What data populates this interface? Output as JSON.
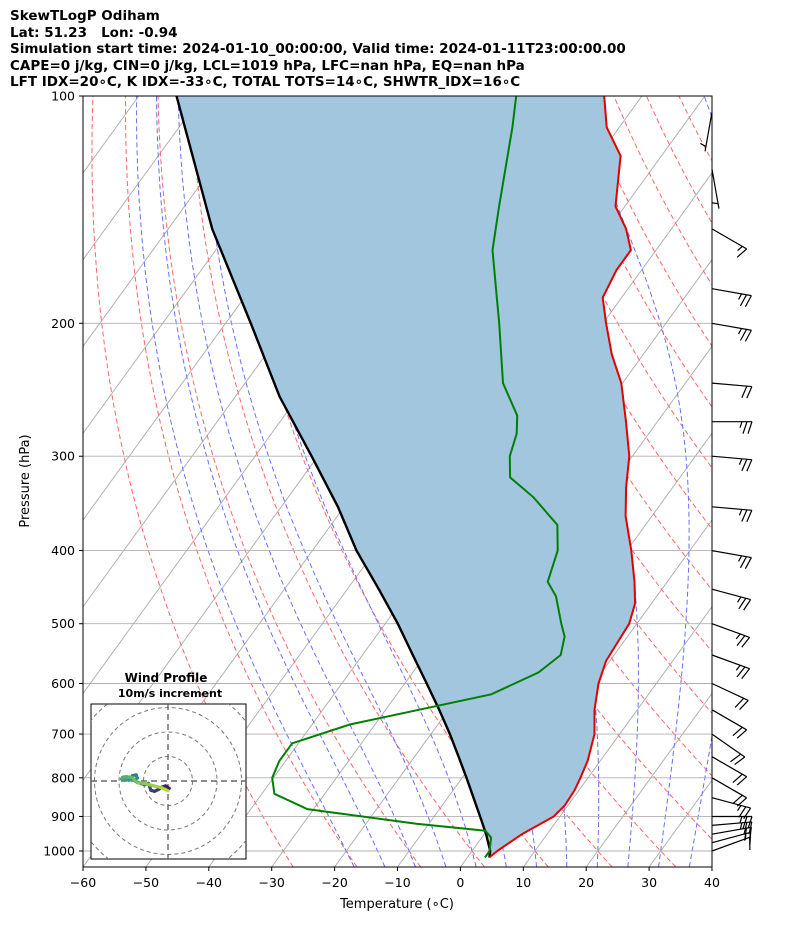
{
  "header": {
    "line1": "SkewTLogP Odiham",
    "line2": "Lat: 51.23   Lon: -0.94",
    "line3": "Simulation start time: 2024-01-10_00:00:00, Valid time: 2024-01-11T23:00:00.00",
    "line4": "CAPE=0 j/kg, CIN=0 j/kg, LCL=1019 hPa, LFC=nan hPa, EQ=nan hPa",
    "line5": "LFT IDX=20∘C, K IDX=-33∘C, TOTAL TOTS=14∘C, SHWTR_IDX=16∘C"
  },
  "colors": {
    "temperature": "#e00000",
    "dewpoint": "#008000",
    "parcel": "#000000",
    "cape_fill": "#a3c6df",
    "dry_adiabat": "#ff6666",
    "moist_adiabat": "#6670ff",
    "isotherm": "#aaaaaa",
    "hodograph_track": [
      "#3b1a6b",
      "#2a9a8c",
      "#b4dc3c"
    ]
  },
  "chart_data": {
    "type": "skewt_logp",
    "xlabel": "Temperature (∘C)",
    "ylabel": "Pressure (hPa)",
    "xlim": [
      -60,
      40
    ],
    "ylim": [
      1050,
      100
    ],
    "x_ticks": [
      "−60",
      "−50",
      "−40",
      "−30",
      "−20",
      "−10",
      "0",
      "10",
      "20",
      "30",
      "40"
    ],
    "y_ticks": [
      {
        "p": 100,
        "label": "100"
      },
      {
        "p": 200,
        "label": "200"
      },
      {
        "p": 300,
        "label": "300"
      },
      {
        "p": 400,
        "label": "400"
      },
      {
        "p": 500,
        "label": "500"
      },
      {
        "p": 600,
        "label": "600"
      },
      {
        "p": 700,
        "label": "700"
      },
      {
        "p": 800,
        "label": "800"
      },
      {
        "p": 900,
        "label": "900"
      },
      {
        "p": 1000,
        "label": "1000"
      }
    ],
    "temperature": [
      [
        1020,
        3.5
      ],
      [
        1000,
        4
      ],
      [
        950,
        6
      ],
      [
        900,
        9
      ],
      [
        870,
        9.5
      ],
      [
        830,
        9.3
      ],
      [
        800,
        8.8
      ],
      [
        760,
        8
      ],
      [
        700,
        6
      ],
      [
        650,
        3.2
      ],
      [
        600,
        0.8
      ],
      [
        560,
        -0.6
      ],
      [
        500,
        -1.2
      ],
      [
        470,
        -2.6
      ],
      [
        440,
        -5.2
      ],
      [
        400,
        -9.3
      ],
      [
        360,
        -14.2
      ],
      [
        330,
        -17.4
      ],
      [
        300,
        -20.5
      ],
      [
        270,
        -25
      ],
      [
        240,
        -30.2
      ],
      [
        220,
        -35
      ],
      [
        200,
        -39.5
      ],
      [
        185,
        -43
      ],
      [
        170,
        -44
      ],
      [
        160,
        -44
      ],
      [
        150,
        -47.2
      ],
      [
        140,
        -51.5
      ],
      [
        120,
        -56.5
      ],
      [
        110,
        -62
      ],
      [
        100,
        -66
      ]
    ],
    "dewpoint": [
      [
        1020,
        2.8
      ],
      [
        1000,
        2.8
      ],
      [
        960,
        1.5
      ],
      [
        940,
        -0.2
      ],
      [
        920,
        -12
      ],
      [
        880,
        -31
      ],
      [
        840,
        -38
      ],
      [
        800,
        -40.2
      ],
      [
        760,
        -41
      ],
      [
        720,
        -41
      ],
      [
        680,
        -34
      ],
      [
        620,
        -15
      ],
      [
        580,
        -10
      ],
      [
        550,
        -8.5
      ],
      [
        520,
        -10
      ],
      [
        500,
        -12
      ],
      [
        460,
        -16
      ],
      [
        440,
        -19
      ],
      [
        400,
        -21
      ],
      [
        370,
        -24
      ],
      [
        340,
        -31
      ],
      [
        320,
        -37
      ],
      [
        300,
        -39.5
      ],
      [
        280,
        -41
      ],
      [
        265,
        -43
      ],
      [
        240,
        -49
      ],
      [
        200,
        -56.5
      ],
      [
        180,
        -61
      ],
      [
        160,
        -66
      ],
      [
        140,
        -70
      ],
      [
        110,
        -77
      ],
      [
        100,
        -80
      ]
    ],
    "parcel": [
      [
        1020,
        3.5
      ],
      [
        1000,
        2.9
      ],
      [
        950,
        0.3
      ],
      [
        900,
        -2.7
      ],
      [
        850,
        -5.9
      ],
      [
        800,
        -9.3
      ],
      [
        750,
        -13
      ],
      [
        700,
        -17
      ],
      [
        650,
        -21.5
      ],
      [
        600,
        -26.5
      ],
      [
        550,
        -32
      ],
      [
        500,
        -38
      ],
      [
        450,
        -45
      ],
      [
        400,
        -53
      ],
      [
        350,
        -61
      ],
      [
        300,
        -71
      ],
      [
        250,
        -83
      ],
      [
        200,
        -96
      ],
      [
        150,
        -113
      ],
      [
        100,
        -134
      ]
    ],
    "wind_barbs": [
      {
        "p": 1000,
        "speed": 10,
        "dir": 250
      },
      {
        "p": 975,
        "speed": 15,
        "dir": 255
      },
      {
        "p": 950,
        "speed": 20,
        "dir": 260
      },
      {
        "p": 925,
        "speed": 25,
        "dir": 265
      },
      {
        "p": 900,
        "speed": 25,
        "dir": 270
      },
      {
        "p": 850,
        "speed": 25,
        "dir": 285
      },
      {
        "p": 800,
        "speed": 20,
        "dir": 300
      },
      {
        "p": 750,
        "speed": 20,
        "dir": 300
      },
      {
        "p": 700,
        "speed": 20,
        "dir": 305
      },
      {
        "p": 650,
        "speed": 20,
        "dir": 300
      },
      {
        "p": 600,
        "speed": 20,
        "dir": 295
      },
      {
        "p": 550,
        "speed": 25,
        "dir": 290
      },
      {
        "p": 500,
        "speed": 25,
        "dir": 290
      },
      {
        "p": 450,
        "speed": 25,
        "dir": 285
      },
      {
        "p": 400,
        "speed": 25,
        "dir": 280
      },
      {
        "p": 350,
        "speed": 25,
        "dir": 275
      },
      {
        "p": 300,
        "speed": 25,
        "dir": 275
      },
      {
        "p": 270,
        "speed": 25,
        "dir": 270
      },
      {
        "p": 240,
        "speed": 20,
        "dir": 275
      },
      {
        "p": 200,
        "speed": 25,
        "dir": 280
      },
      {
        "p": 180,
        "speed": 25,
        "dir": 280
      },
      {
        "p": 150,
        "speed": 15,
        "dir": 300
      },
      {
        "p": 125,
        "speed": 5,
        "dir": 350
      },
      {
        "p": 105,
        "speed": 5,
        "dir": 10
      }
    ],
    "hodograph": {
      "title": "Wind Profile",
      "subtitle": "10m/s increment",
      "ring_spacing_ms": 10,
      "points_ms": [
        [
          0.5,
          -3
        ],
        [
          -1,
          -2
        ],
        [
          -2.5,
          -2.5
        ],
        [
          -4,
          -3.5
        ],
        [
          -5.5,
          -4.2
        ],
        [
          -7,
          -3.8
        ],
        [
          -7.5,
          -2.2
        ],
        [
          -8,
          -1
        ],
        [
          -9.5,
          -1.5
        ],
        [
          -11,
          -1
        ],
        [
          -13,
          -0.3
        ],
        [
          -14.5,
          0.8
        ],
        [
          -14.5,
          2.2
        ],
        [
          -13,
          2.5
        ],
        [
          -12.5,
          1.2
        ],
        [
          -13.5,
          0.5
        ],
        [
          -15,
          0.5
        ],
        [
          -16,
          0.3
        ],
        [
          -17.5,
          0.8
        ],
        [
          -19,
          0.8
        ],
        [
          -18.5,
          1.5
        ],
        [
          -17,
          1.8
        ],
        [
          -15.5,
          1.6
        ],
        [
          -14.5,
          1.4
        ],
        [
          -14,
          0.6
        ],
        [
          -12.5,
          -0.7
        ],
        [
          -10.5,
          -0.9
        ],
        [
          -8.5,
          -1.3
        ],
        [
          -6.5,
          -1.8
        ],
        [
          -4.5,
          -2.3
        ],
        [
          -2.5,
          -2.8
        ],
        [
          -1,
          -3.5
        ],
        [
          0,
          -4
        ]
      ]
    }
  }
}
